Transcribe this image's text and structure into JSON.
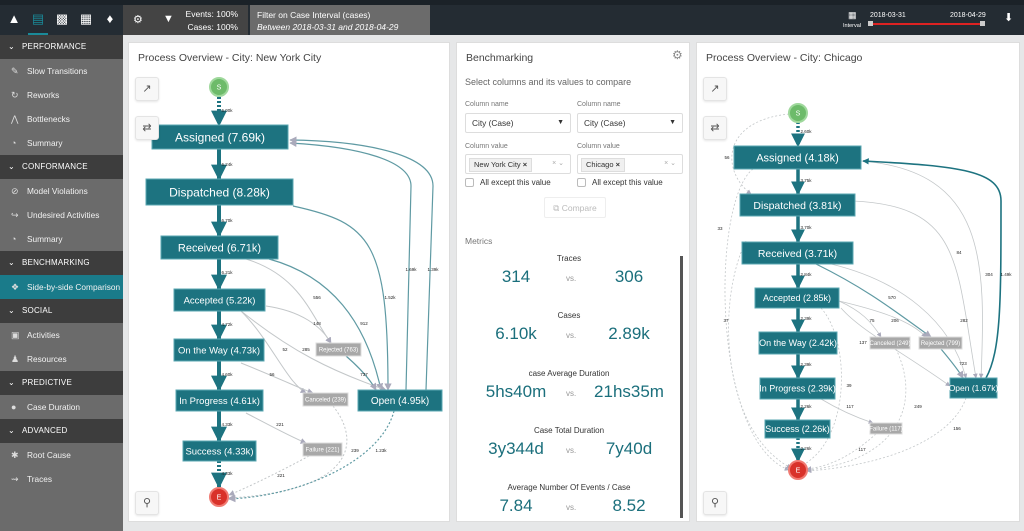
{
  "topbar": {
    "icons": [
      "process-map-icon",
      "variants-icon",
      "chart-icon",
      "table-icon",
      "bell-icon"
    ],
    "events": "Events: 100%",
    "cases": "Cases: 100%",
    "filter_title": "Filter on Case Interval (cases)",
    "filter_desc": "Between 2018-03-31 and 2018-04-29",
    "interval_label": "Interval",
    "interval_start": "2018-03-31",
    "interval_end": "2018-04-29"
  },
  "sidebar": [
    {
      "header": "PERFORMANCE",
      "items": [
        {
          "icon": "slow-icon",
          "label": "Slow Transitions"
        },
        {
          "icon": "rework-icon",
          "label": "Reworks"
        },
        {
          "icon": "bottleneck-icon",
          "label": "Bottlenecks"
        },
        {
          "icon": "gauge-icon",
          "label": "Summary"
        }
      ]
    },
    {
      "header": "CONFORMANCE",
      "items": [
        {
          "icon": "ban-icon",
          "label": "Model Violations"
        },
        {
          "icon": "undesired-icon",
          "label": "Undesired Activities"
        },
        {
          "icon": "gauge-icon",
          "label": "Summary"
        }
      ]
    },
    {
      "header": "BENCHMARKING",
      "items": [
        {
          "icon": "compare-icon",
          "label": "Side-by-side Comparison",
          "active": true
        }
      ]
    },
    {
      "header": "SOCIAL",
      "items": [
        {
          "icon": "clipboard-icon",
          "label": "Activities"
        },
        {
          "icon": "people-icon",
          "label": "Resources"
        }
      ]
    },
    {
      "header": "PREDICTIVE",
      "items": [
        {
          "icon": "globe-icon",
          "label": "Case Duration"
        }
      ]
    },
    {
      "header": "ADVANCED",
      "items": [
        {
          "icon": "root-cause-icon",
          "label": "Root Cause"
        },
        {
          "icon": "traces-icon",
          "label": "Traces"
        }
      ]
    }
  ],
  "colors": {
    "accent": "#1a7b8a",
    "node": "#1d7380",
    "gray_node": "#a8a8a8",
    "start": "#6dbb6a",
    "end": "#d9322a",
    "edge": "#5f9aa3"
  },
  "left_map": {
    "title": "Process Overview - City: New York City",
    "nodes": {
      "S": "S",
      "E": "E",
      "A": "Assigned (7.69k)",
      "D": "Dispatched (8.28k)",
      "R": "Received (6.71k)",
      "AC": "Accepted (5.22k)",
      "OW": "On the Way (4.73k)",
      "IP": "In Progress (4.61k)",
      "SU": "Success (4.33k)",
      "RJ": "Rejected (763)",
      "CA": "Canceled (239)",
      "FA": "Failure (221)",
      "OP": "Open (4.95k)"
    },
    "edges": [
      "6.00k",
      "6.24k",
      "6.70k",
      "6.21k",
      "4.72k",
      "4.60k",
      "4.33k",
      "4.33k",
      "556",
      "148",
      "912",
      "52",
      "285",
      "1.52k",
      "1.69k",
      "1.39k",
      "56",
      "737",
      "221",
      "221",
      "239",
      "1.23k"
    ]
  },
  "right_map": {
    "title": "Process Overview - City: Chicago",
    "nodes": {
      "S": "S",
      "E": "E",
      "A": "Assigned (4.18k)",
      "D": "Dispatched (3.81k)",
      "R": "Received (3.71k)",
      "AC": "Accepted (2.85k)",
      "OW": "On the Way (2.42k)",
      "IP": "In Progress (2.39k)",
      "SU": "Success (2.26k)",
      "RJ": "Rejected (799)",
      "CA": "Canceled (249)",
      "FA": "Failure (117)",
      "OP": "Open (1.67k)"
    },
    "edges": [
      "2.60k",
      "3.75k",
      "3.70k",
      "2.84k",
      "2.39k",
      "2.39k",
      "2.26k",
      "2.26k",
      "56",
      "33",
      "84",
      "304",
      "1.49k",
      "570",
      "37",
      "75",
      "206",
      "282",
      "137",
      "723",
      "39",
      "117",
      "249",
      "156",
      "117"
    ]
  },
  "bench": {
    "title": "Benchmarking",
    "subtitle": "Select columns and its values to compare",
    "col_name_label": "Column name",
    "col_value_label": "Column value",
    "left_column": "City (Case)",
    "right_column": "City (Case)",
    "left_value": "New York City",
    "right_value": "Chicago",
    "except_label": "All except this value",
    "compare": "Compare",
    "metrics_label": "Metrics",
    "vs": "vs.",
    "metrics": [
      {
        "title": "Traces",
        "a": "314",
        "b": "306"
      },
      {
        "title": "Cases",
        "a": "6.10k",
        "b": "2.89k"
      },
      {
        "title": "case Average Duration",
        "a": "5hs40m",
        "b": "21hs35m"
      },
      {
        "title": "Case Total Duration",
        "a": "3y344d",
        "b": "7y40d"
      },
      {
        "title": "Average Number Of Events / Case",
        "a": "7.84",
        "b": "8.52"
      }
    ]
  }
}
